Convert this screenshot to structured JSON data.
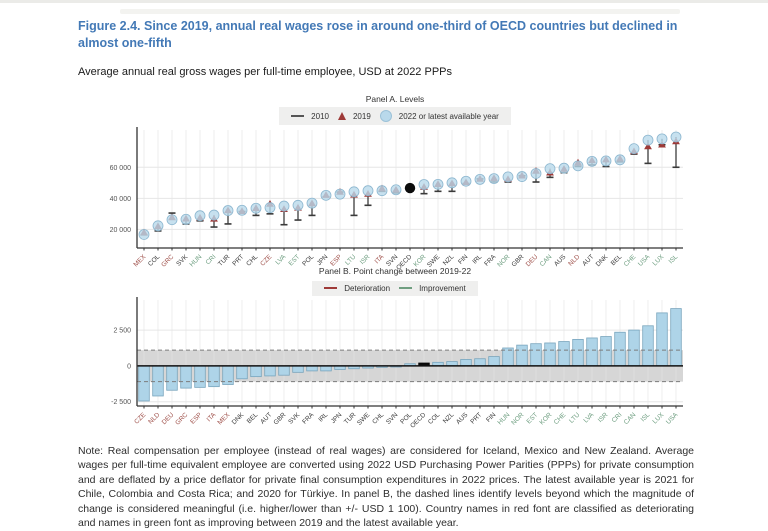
{
  "page": {
    "title": "Figure 2.4. Since 2019, annual real wages rose in around one-third of OECD countries but declined in almost one-fifth",
    "subtitle": "Average annual real gross wages per full-time employee, USD at 2022 PPPs",
    "note": "Note: Real compensation per employee (instead of real wages) are considered for Iceland, Mexico and New Zealand. Average wages per full-time equivalent employee are converted using 2022 USD Purchasing Power Parities (PPPs) for private consumption and are deflated by a price deflator for private final consumption expenditures in 2022 prices. The latest available year is 2021 for Chile, Colombia and Costa Rica; and 2020 for Türkiye. In panel B, the dashed lines identify levels beyond which the magnitude of change is considered meaningful (i.e. higher/lower than +/- USD 1 100). Country names in red font are classified as deteriorating and names in green font as improving between 2019 and the latest available year."
  },
  "colors": {
    "title_blue": "#4379b6",
    "bar_fill": "#aed4e8",
    "bar_stroke": "#79a5bd",
    "triangle_red": "#9e3a38",
    "circle_fill": "#b9d9eb",
    "circle_stroke": "#8cb6cf",
    "oecd_black": "#0c0c0c",
    "label_red": "#a0524c",
    "label_green": "#71a083",
    "label_default": "#404040",
    "band_gray": "#d6d6d6",
    "grid": "#e6e6e6",
    "axis": "#333333"
  },
  "chart_data": [
    {
      "type": "scatter",
      "title": "Panel A. Levels",
      "legend": [
        {
          "marker": "dash",
          "label": "2010"
        },
        {
          "marker": "triangle",
          "label": "2019"
        },
        {
          "marker": "circle",
          "label": "2022  or latest available year"
        }
      ],
      "ylim": [
        8000,
        84000
      ],
      "yticks": [
        20000,
        40000,
        60000
      ],
      "grid": true,
      "categories": [
        "MEX",
        "COL",
        "GRC",
        "SVK",
        "HUN",
        "CRI",
        "TUR",
        "PRT",
        "CHL",
        "CZE",
        "LVA",
        "EST",
        "POL",
        "JPN",
        "ESP",
        "LTU",
        "ISR",
        "ITA",
        "SVN",
        "OECD",
        "KOR",
        "SWE",
        "NZL",
        "FIN",
        "IRL",
        "FRA",
        "NOR",
        "GBR",
        "DEU",
        "CAN",
        "AUS",
        "NLD",
        "AUT",
        "DNK",
        "BEL",
        "CHE",
        "USA",
        "LUX",
        "ISL"
      ],
      "label_colors": [
        "red",
        "default",
        "red",
        "default",
        "green",
        "green",
        "default",
        "default",
        "default",
        "red",
        "green",
        "green",
        "default",
        "default",
        "red",
        "green",
        "green",
        "red",
        "default",
        "default",
        "green",
        "default",
        "default",
        "default",
        "default",
        "default",
        "green",
        "default",
        "red",
        "green",
        "default",
        "red",
        "default",
        "default",
        "default",
        "green",
        "green",
        "green",
        "green"
      ],
      "series": [
        {
          "name": "2010",
          "values": [
            16500,
            19000,
            30500,
            23500,
            25500,
            21500,
            23500,
            31500,
            29000,
            30000,
            23000,
            26000,
            29000,
            41000,
            44000,
            29000,
            35500,
            44500,
            43500,
            45500,
            43000,
            44500,
            44500,
            49500,
            52500,
            50500,
            50500,
            54500,
            50500,
            53500,
            56500,
            60500,
            61500,
            60500,
            63500,
            68500,
            62500,
            74500,
            60000
          ]
        },
        {
          "name": "2019",
          "values": [
            18000,
            22050,
            27750,
            26950,
            27550,
            26850,
            32300,
            31800,
            33700,
            36450,
            33050,
            33950,
            36750,
            42150,
            44200,
            42350,
            42850,
            46350,
            45580,
            46400,
            47300,
            49150,
            49700,
            50350,
            52550,
            53050,
            52350,
            54650,
            57700,
            56600,
            58950,
            63000,
            64500,
            65000,
            65550,
            70300,
            73500,
            74600,
            76700
          ]
        },
        {
          "name": "2022 or latest available year",
          "values": [
            16700,
            22300,
            26200,
            26500,
            28800,
            29200,
            32100,
            32300,
            33600,
            34000,
            35000,
            35500,
            36900,
            41900,
            42700,
            44200,
            44900,
            44900,
            45500,
            46600,
            48900,
            49000,
            50000,
            51000,
            52200,
            52700,
            53800,
            54000,
            56000,
            59100,
            59400,
            60900,
            63800,
            64100,
            64800,
            72000,
            77500,
            78300,
            79500
          ]
        }
      ],
      "highlight_category": "OECD"
    },
    {
      "type": "bar",
      "title": "Panel B. Point change between 2019-22",
      "legend": [
        {
          "marker": "dash-red",
          "label": "Deterioration"
        },
        {
          "marker": "dash-green",
          "label": "Improvement"
        }
      ],
      "ylim": [
        -2800,
        4600
      ],
      "yticks": [
        -2500,
        0,
        2500
      ],
      "threshold": 1100,
      "grid": true,
      "categories": [
        "CZE",
        "NLD",
        "DEU",
        "GRC",
        "ESP",
        "ITA",
        "MEX",
        "DNK",
        "BEL",
        "AUT",
        "GBR",
        "SVK",
        "FRA",
        "IRL",
        "JPN",
        "TUR",
        "SWE",
        "CHL",
        "SVN",
        "POL",
        "OECD",
        "COL",
        "NZL",
        "AUS",
        "PRT",
        "FIN",
        "HUN",
        "NOR",
        "EST",
        "KOR",
        "CHE",
        "LTU",
        "LVA",
        "ISR",
        "CRI",
        "CAN",
        "ISL",
        "LUX",
        "USA"
      ],
      "label_colors": [
        "red",
        "red",
        "red",
        "red",
        "red",
        "red",
        "red",
        "default",
        "default",
        "default",
        "default",
        "default",
        "default",
        "default",
        "default",
        "default",
        "default",
        "default",
        "default",
        "default",
        "default",
        "default",
        "default",
        "default",
        "default",
        "default",
        "green",
        "green",
        "green",
        "green",
        "green",
        "green",
        "green",
        "green",
        "green",
        "green",
        "green",
        "green",
        "green"
      ],
      "values": [
        -2450,
        -2100,
        -1700,
        -1550,
        -1500,
        -1450,
        -1300,
        -900,
        -750,
        -700,
        -650,
        -450,
        -350,
        -350,
        -250,
        -200,
        -150,
        -100,
        -80,
        150,
        200,
        250,
        300,
        450,
        500,
        650,
        1250,
        1450,
        1550,
        1600,
        1700,
        1850,
        1950,
        2050,
        2350,
        2500,
        2800,
        3700,
        4000
      ],
      "highlight_category": "OECD"
    }
  ]
}
